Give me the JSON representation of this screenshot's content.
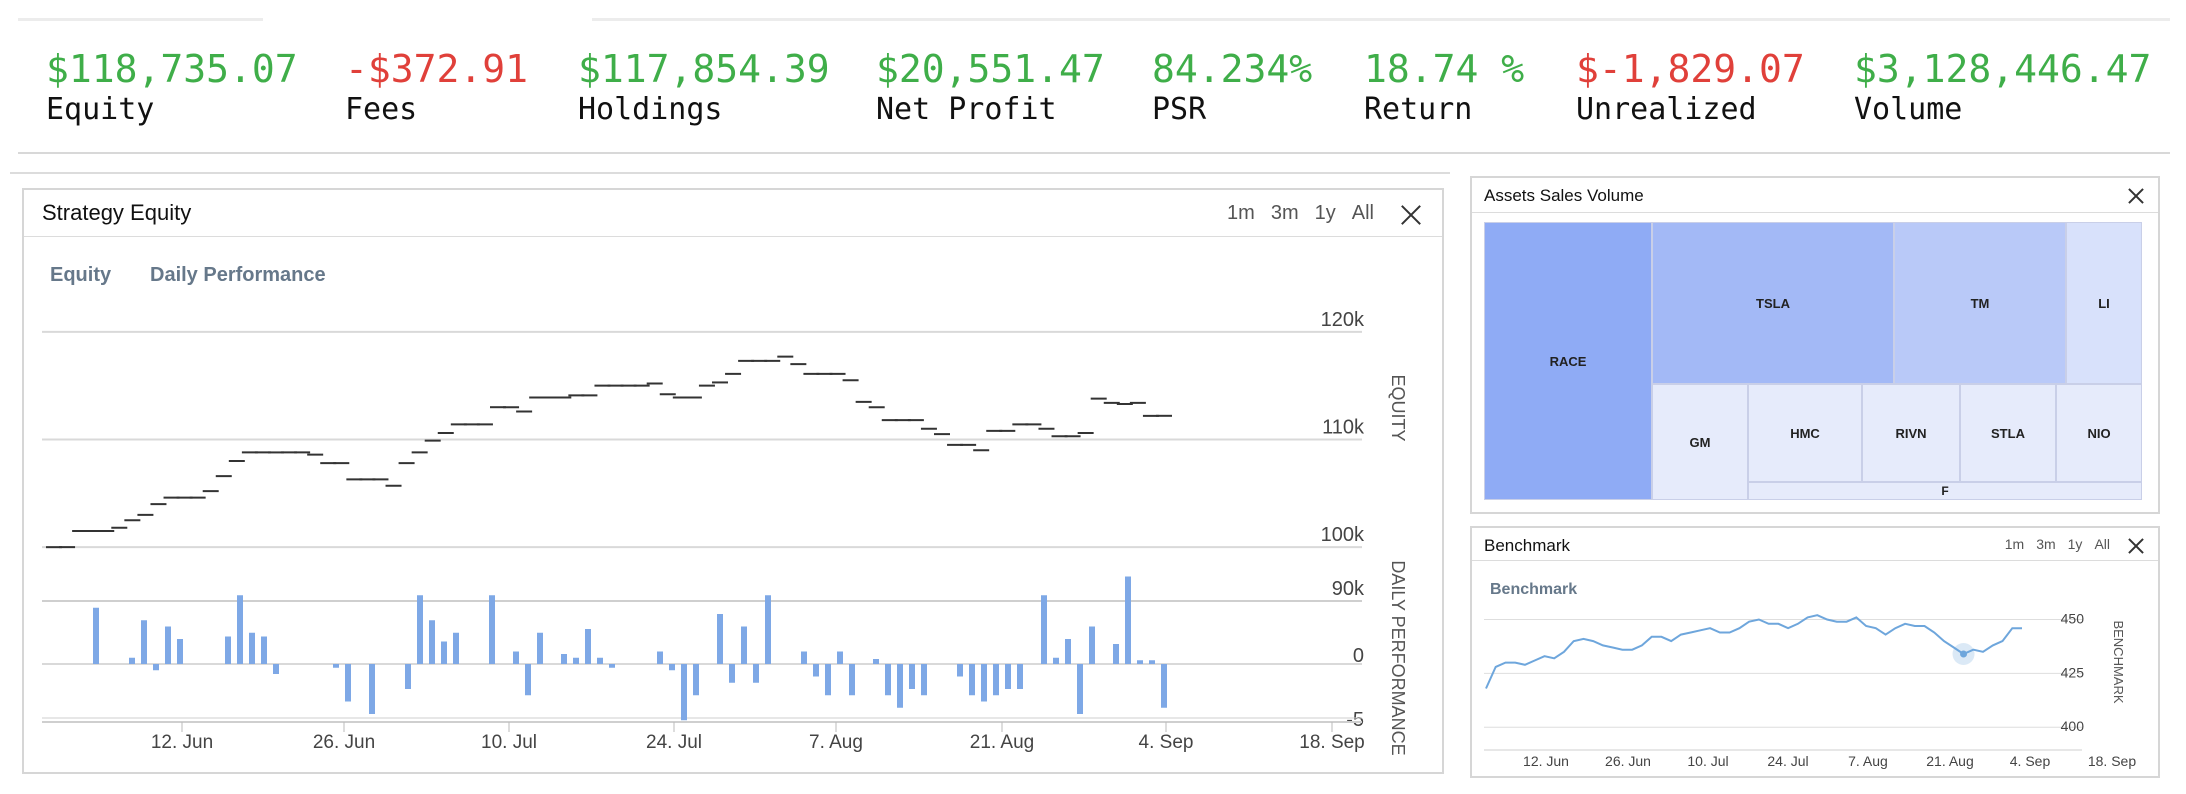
{
  "stats": [
    {
      "value": "$118,735.07",
      "label": "Equity",
      "tone": "pos"
    },
    {
      "value": "-$372.91",
      "label": "Fees",
      "tone": "neg"
    },
    {
      "value": "$117,854.39",
      "label": "Holdings",
      "tone": "pos"
    },
    {
      "value": "$20,551.47",
      "label": "Net Profit",
      "tone": "pos"
    },
    {
      "value": "84.234%",
      "label": "PSR",
      "tone": "pos"
    },
    {
      "value": "18.74 %",
      "label": "Return",
      "tone": "pos"
    },
    {
      "value": "$-1,829.07",
      "label": "Unrealized",
      "tone": "neg"
    },
    {
      "value": "$3,128,446.47",
      "label": "Volume",
      "tone": "pos"
    }
  ],
  "colors": {
    "positive": "#3fae49",
    "negative": "#e0403a",
    "bar": "#7ea8e6",
    "line": "#6ea6dc",
    "treemap_dark": "#8fabf5",
    "treemap_light": "#e6ebfb"
  },
  "strategy": {
    "title": "Strategy Equity",
    "ranges": [
      "1m",
      "3m",
      "1y",
      "All"
    ],
    "legend": [
      "Equity",
      "Daily Performance"
    ]
  },
  "assets": {
    "title": "Assets Sales Volume"
  },
  "benchmark": {
    "title": "Benchmark",
    "ranges": [
      "1m",
      "3m",
      "1y",
      "All"
    ]
  },
  "chart_data": [
    {
      "type": "line",
      "title": "Strategy Equity",
      "series": [
        {
          "name": "Equity",
          "values": [
            100000,
            100000,
            101500,
            101500,
            101500,
            101800,
            102500,
            103000,
            104000,
            104600,
            104600,
            104600,
            105200,
            106600,
            108000,
            108800,
            108800,
            108800,
            108800,
            108800,
            108600,
            107800,
            107800,
            106300,
            106300,
            106300,
            105700,
            107800,
            108800,
            109900,
            110600,
            111400,
            111400,
            111400,
            113000,
            113000,
            112600,
            113900,
            113900,
            113900,
            114100,
            114100,
            115000,
            115000,
            115000,
            115000,
            115200,
            114200,
            113900,
            113900,
            115000,
            115300,
            116100,
            117300,
            117300,
            117300,
            117700,
            117000,
            116100,
            116100,
            116100,
            115500,
            113500,
            113000,
            111800,
            111800,
            111800,
            111000,
            110500,
            109500,
            109500,
            109000,
            110800,
            110800,
            111400,
            111400,
            111000,
            110300,
            110300,
            110600,
            113800,
            113400,
            113300,
            113400,
            112200,
            112200
          ]
        }
      ],
      "y_range": [
        95000,
        125000
      ],
      "y_ticks": [
        "120k",
        "110k",
        "100k",
        "90k"
      ],
      "ylabel": "EQUITY",
      "x_ticks": [
        "12. Jun",
        "26. Jun",
        "10. Jul",
        "24. Jul",
        "7. Aug",
        "21. Aug",
        "4. Sep",
        "18. Sep"
      ],
      "legend": [
        "Equity",
        "Daily Performance"
      ]
    },
    {
      "type": "bar",
      "title": "Daily Performance",
      "series": [
        {
          "name": "Daily Performance",
          "values": [
            0,
            0,
            4.5,
            0,
            0,
            0.5,
            3.5,
            -0.5,
            3,
            2,
            0,
            0,
            0,
            2.2,
            5.5,
            2.5,
            2.2,
            -0.8,
            0,
            0,
            0,
            0,
            -0.3,
            -3,
            0,
            -4,
            0,
            0,
            -2,
            5.5,
            3.5,
            1.8,
            2.5,
            0,
            0,
            5.5,
            0,
            1,
            -2.5,
            2.5,
            0,
            0.8,
            0.5,
            2.8,
            0.5,
            -0.3,
            0,
            0,
            0,
            1,
            -0.5,
            -4.5,
            -2.5,
            0,
            4,
            -1.5,
            3,
            -1.5,
            5.5,
            0,
            0,
            1,
            -1,
            -2.5,
            1,
            -2.5,
            0,
            0.4,
            -2.5,
            -3.5,
            -2,
            -2.5,
            0,
            0,
            -1,
            -2.5,
            -3,
            -2.5,
            -2,
            -2,
            0,
            5.5,
            0.5,
            2,
            -4,
            3,
            0,
            1.6,
            7,
            0.3,
            0.3,
            -3.5
          ]
        }
      ],
      "y_range": [
        -5,
        10
      ],
      "y_ticks": [
        "0",
        "-5"
      ],
      "ylabel": "DAILY PERFORMANCE"
    },
    {
      "type": "line",
      "title": "Benchmark",
      "series": [
        {
          "name": "Benchmark",
          "values": [
            418,
            428,
            430,
            430,
            429,
            431,
            433,
            432,
            435,
            440,
            441,
            440,
            438,
            437,
            436,
            436,
            438,
            442,
            442,
            440,
            443,
            444,
            445,
            446,
            444,
            444,
            446,
            449,
            450,
            448,
            448,
            446,
            448,
            451,
            452,
            450,
            449,
            449,
            451,
            447,
            446,
            443,
            446,
            448,
            447,
            447,
            444,
            440,
            437,
            434,
            436,
            435,
            438,
            440,
            446,
            446
          ]
        }
      ],
      "y_range": [
        395,
        460
      ],
      "y_ticks": [
        "450",
        "425",
        "400"
      ],
      "ylabel": "BENCHMARK",
      "x_ticks": [
        "12. Jun",
        "26. Jun",
        "10. Jul",
        "24. Jul",
        "7. Aug",
        "21. Aug",
        "4. Sep",
        "18. Sep"
      ],
      "legend": [
        "Benchmark"
      ]
    },
    {
      "type": "treemap",
      "title": "Assets Sales Volume",
      "labels": [
        "RACE",
        "TSLA",
        "TM",
        "LI",
        "GM",
        "HMC",
        "RIVN",
        "STLA",
        "NIO",
        "F"
      ]
    }
  ]
}
